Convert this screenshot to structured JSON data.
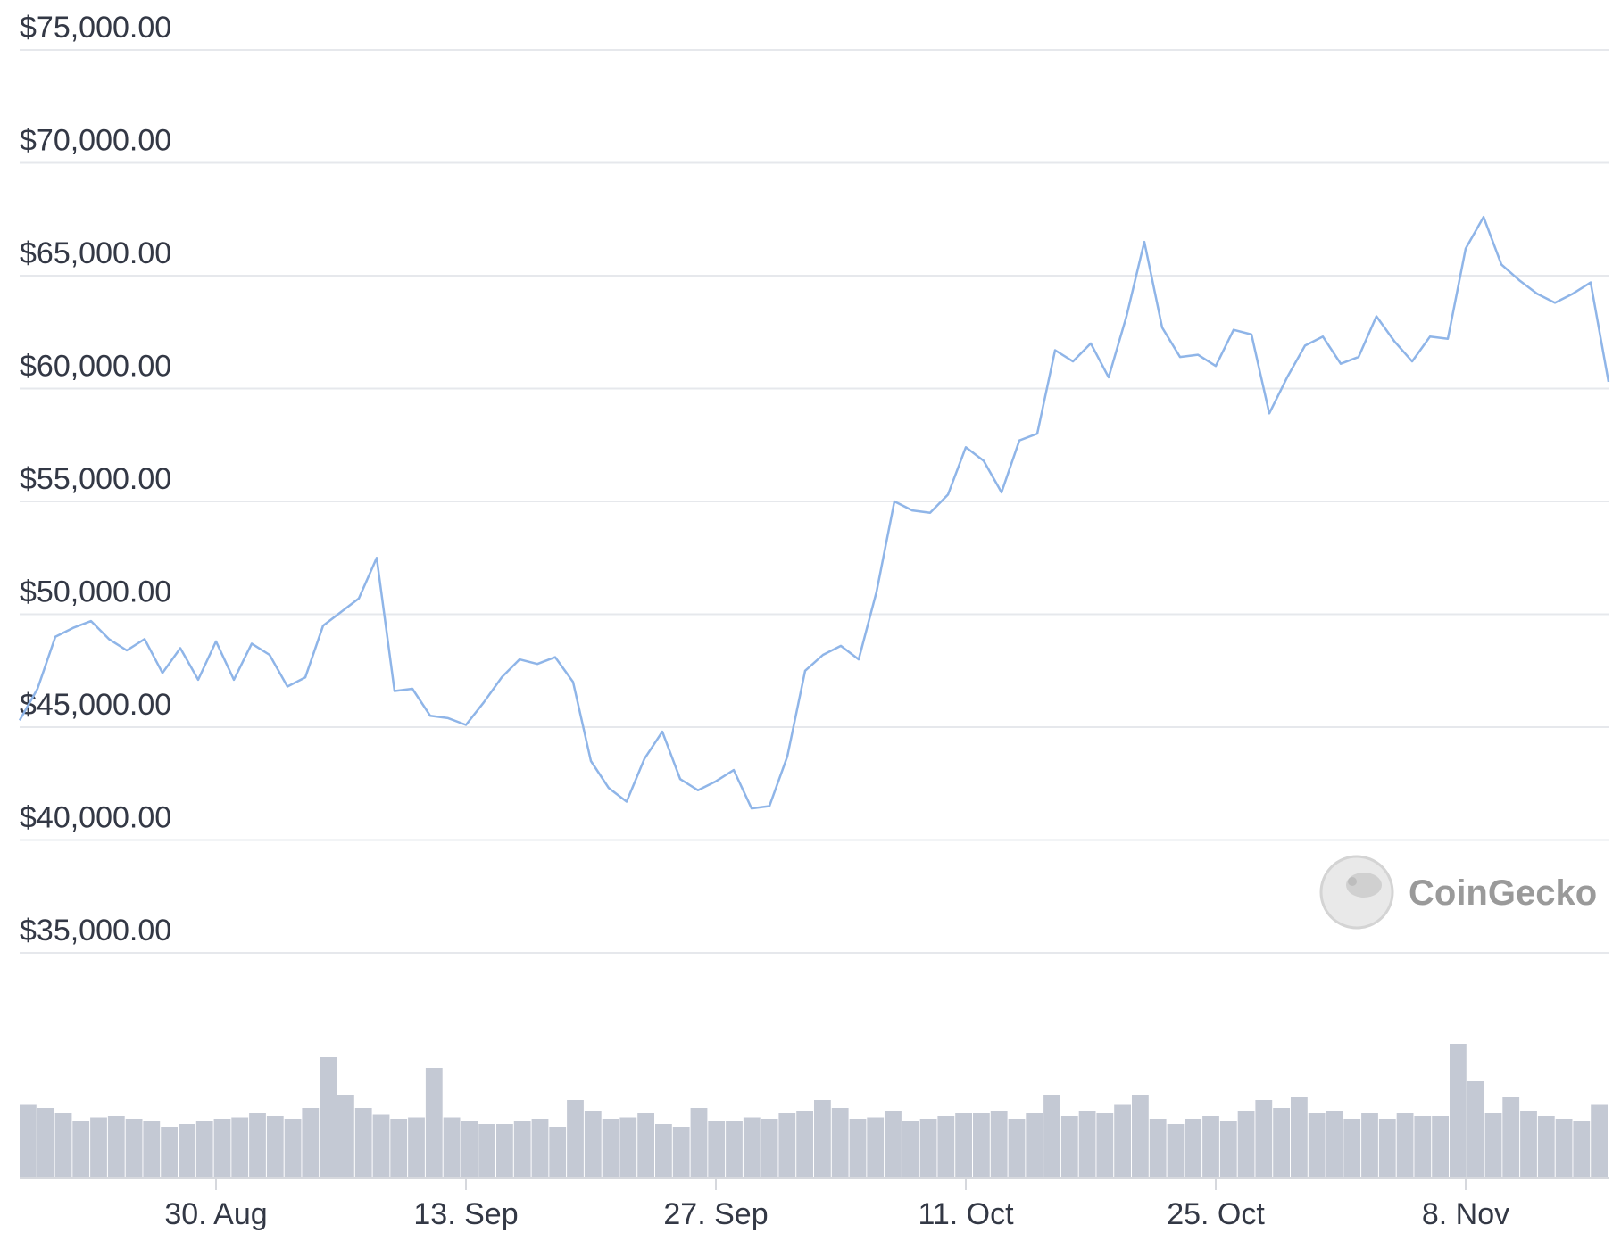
{
  "chart_data": {
    "type": "line",
    "title": "",
    "xlabel": "",
    "ylabel": "",
    "x_ticks": [
      "30. Aug",
      "13. Sep",
      "27. Sep",
      "11. Oct",
      "25. Oct",
      "8. Nov"
    ],
    "y_ticks": [
      "$75,000.00",
      "$70,000.00",
      "$65,000.00",
      "$60,000.00",
      "$55,000.00",
      "$50,000.00",
      "$45,000.00",
      "$40,000.00",
      "$35,000.00"
    ],
    "ylim": [
      35000,
      75000
    ],
    "xlim": [
      "2021-08-19",
      "2021-11-16"
    ],
    "grid": true,
    "line_color": "#8fb5e8",
    "volume_color": "#c4c9d4",
    "series": [
      {
        "x": [
          "2021-08-19",
          "2021-08-20",
          "2021-08-21",
          "2021-08-22",
          "2021-08-23",
          "2021-08-24",
          "2021-08-25",
          "2021-08-26",
          "2021-08-27",
          "2021-08-28",
          "2021-08-29",
          "2021-08-30",
          "2021-08-31",
          "2021-09-01",
          "2021-09-02",
          "2021-09-03",
          "2021-09-04",
          "2021-09-05",
          "2021-09-06",
          "2021-09-07",
          "2021-09-08",
          "2021-09-09",
          "2021-09-10",
          "2021-09-11",
          "2021-09-12",
          "2021-09-13",
          "2021-09-14",
          "2021-09-15",
          "2021-09-16",
          "2021-09-17",
          "2021-09-18",
          "2021-09-19",
          "2021-09-20",
          "2021-09-21",
          "2021-09-22",
          "2021-09-23",
          "2021-09-24",
          "2021-09-25",
          "2021-09-26",
          "2021-09-27",
          "2021-09-28",
          "2021-09-29",
          "2021-09-30",
          "2021-10-01",
          "2021-10-02",
          "2021-10-03",
          "2021-10-04",
          "2021-10-05",
          "2021-10-06",
          "2021-10-07",
          "2021-10-08",
          "2021-10-09",
          "2021-10-10",
          "2021-10-11",
          "2021-10-12",
          "2021-10-13",
          "2021-10-14",
          "2021-10-15",
          "2021-10-16",
          "2021-10-17",
          "2021-10-18",
          "2021-10-19",
          "2021-10-20",
          "2021-10-21",
          "2021-10-22",
          "2021-10-23",
          "2021-10-24",
          "2021-10-25",
          "2021-10-26",
          "2021-10-27",
          "2021-10-28",
          "2021-10-29",
          "2021-10-30",
          "2021-10-31",
          "2021-11-01",
          "2021-11-02",
          "2021-11-03",
          "2021-11-04",
          "2021-11-05",
          "2021-11-06",
          "2021-11-07",
          "2021-11-08",
          "2021-11-09",
          "2021-11-10",
          "2021-11-11",
          "2021-11-12",
          "2021-11-13",
          "2021-11-14",
          "2021-11-15",
          "2021-11-16"
        ],
        "values": [
          45300,
          46700,
          49000,
          49400,
          49700,
          48900,
          48400,
          48900,
          47400,
          48500,
          47100,
          48800,
          47100,
          48700,
          48200,
          46800,
          47200,
          49500,
          50100,
          50700,
          52500,
          46600,
          46700,
          45500,
          45400,
          45100,
          46100,
          47200,
          48000,
          47800,
          48100,
          47000,
          43500,
          42300,
          41700,
          43600,
          44800,
          42700,
          42200,
          42600,
          43100,
          41400,
          41500,
          43700,
          47500,
          48200,
          48600,
          48000,
          51000,
          55000,
          54600,
          54500,
          55300,
          57400,
          56800,
          55400,
          57700,
          58000,
          61700,
          61200,
          62000,
          60500,
          63200,
          66500,
          62700,
          61400,
          61500,
          61000,
          62600,
          62400,
          58900,
          60500,
          61900,
          62300,
          61100,
          61400,
          63200,
          62100,
          61200,
          62300,
          62200,
          66200,
          67600,
          65500,
          64800,
          64200,
          63800,
          64200,
          64700,
          60300
        ]
      }
    ],
    "volume": [
      0.55,
      0.52,
      0.48,
      0.42,
      0.45,
      0.46,
      0.44,
      0.42,
      0.38,
      0.4,
      0.42,
      0.44,
      0.45,
      0.48,
      0.46,
      0.44,
      0.52,
      0.9,
      0.62,
      0.52,
      0.47,
      0.44,
      0.45,
      0.82,
      0.45,
      0.42,
      0.4,
      0.4,
      0.42,
      0.44,
      0.38,
      0.58,
      0.5,
      0.44,
      0.45,
      0.48,
      0.4,
      0.38,
      0.52,
      0.42,
      0.42,
      0.45,
      0.44,
      0.48,
      0.5,
      0.58,
      0.52,
      0.44,
      0.45,
      0.5,
      0.42,
      0.44,
      0.46,
      0.48,
      0.48,
      0.5,
      0.44,
      0.48,
      0.62,
      0.46,
      0.5,
      0.48,
      0.55,
      0.62,
      0.44,
      0.4,
      0.44,
      0.46,
      0.42,
      0.5,
      0.58,
      0.52,
      0.6,
      0.48,
      0.5,
      0.44,
      0.48,
      0.44,
      0.48,
      0.46,
      0.46,
      1.0,
      0.72,
      0.48,
      0.6,
      0.5,
      0.46,
      0.44,
      0.42,
      0.55
    ]
  },
  "watermark": {
    "brand": "CoinGecko"
  }
}
